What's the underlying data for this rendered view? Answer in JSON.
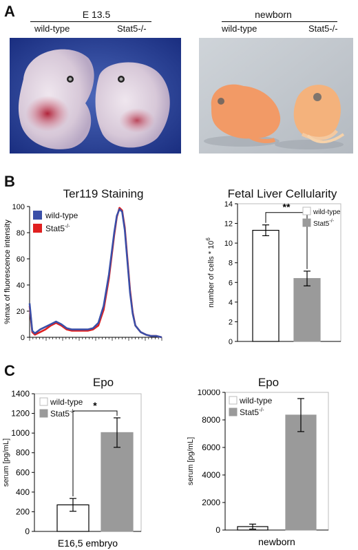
{
  "panels": {
    "a": {
      "letter": "A",
      "left_group": {
        "title": "E 13.5",
        "labels": [
          "wild-type",
          "Stat5-/-"
        ]
      },
      "right_group": {
        "title": "newborn",
        "labels": [
          "wild-type",
          "Stat5-/-"
        ]
      }
    },
    "b": {
      "letter": "B"
    },
    "c": {
      "letter": "C"
    }
  },
  "chart_data": [
    {
      "id": "ter119",
      "type": "line",
      "title": "Ter119 Staining",
      "xlabel": "",
      "ylabel": "%max of fluorescence intensity",
      "ylim": [
        0,
        100
      ],
      "yticks": [
        0,
        20,
        40,
        60,
        80,
        100
      ],
      "xlim": [
        0,
        1
      ],
      "legend": "top-left",
      "series": [
        {
          "name": "wild-type",
          "color": "#3a4fa8",
          "x": [
            0,
            0.02,
            0.04,
            0.08,
            0.12,
            0.16,
            0.2,
            0.24,
            0.28,
            0.32,
            0.36,
            0.4,
            0.44,
            0.48,
            0.52,
            0.56,
            0.6,
            0.64,
            0.66,
            0.68,
            0.7,
            0.72,
            0.74,
            0.76,
            0.78,
            0.8,
            0.84,
            0.88,
            0.92,
            0.96,
            1.0
          ],
          "y": [
            26,
            5,
            3,
            6,
            8,
            10,
            12,
            10,
            7,
            6,
            6,
            6,
            6,
            7,
            11,
            24,
            48,
            80,
            93,
            98,
            96,
            82,
            58,
            34,
            18,
            9,
            4,
            2,
            1,
            1,
            0
          ]
        },
        {
          "name": "Stat5-/-",
          "color": "#e02020",
          "x": [
            0,
            0.02,
            0.04,
            0.08,
            0.12,
            0.16,
            0.2,
            0.24,
            0.28,
            0.32,
            0.36,
            0.4,
            0.44,
            0.48,
            0.52,
            0.56,
            0.6,
            0.64,
            0.66,
            0.68,
            0.7,
            0.72,
            0.74,
            0.76,
            0.78,
            0.8,
            0.84,
            0.88,
            0.92,
            0.96,
            1.0
          ],
          "y": [
            24,
            4,
            2,
            4,
            6,
            9,
            11,
            9,
            6,
            5,
            5,
            5,
            5,
            6,
            9,
            21,
            45,
            78,
            92,
            99,
            97,
            84,
            60,
            36,
            19,
            9,
            4,
            2,
            1,
            1,
            0
          ]
        }
      ]
    },
    {
      "id": "cellularity",
      "type": "bar",
      "title": "Fetal Liver Cellularity",
      "ylabel": "number of cells * 10^6",
      "ylim": [
        0,
        14
      ],
      "yticks": [
        0,
        2,
        4,
        6,
        8,
        10,
        12,
        14
      ],
      "categories": [
        "wild-type",
        "Stat5-/-"
      ],
      "values": [
        11.3,
        6.4
      ],
      "errors": [
        0.55,
        0.75
      ],
      "colors": [
        "#ffffff",
        "#9a9a9a"
      ],
      "legend": "top-right",
      "significance": "**"
    },
    {
      "id": "epo_embryo",
      "type": "bar",
      "title": "Epo",
      "ylabel": "serum [pg/mL]",
      "xlabel": "E16,5 embryo",
      "ylim": [
        0,
        1400
      ],
      "yticks": [
        0,
        200,
        400,
        600,
        800,
        1000,
        1200,
        1400
      ],
      "categories": [
        "wild-type",
        "Stat5-/-"
      ],
      "values": [
        270,
        1005
      ],
      "errors": [
        65,
        150
      ],
      "colors": [
        "#ffffff",
        "#9a9a9a"
      ],
      "legend": "top-left",
      "significance": "*"
    },
    {
      "id": "epo_newborn",
      "type": "bar",
      "title": "Epo",
      "ylabel": "serum [pg/mL]",
      "xlabel": "newborn",
      "ylim": [
        0,
        10000
      ],
      "yticks": [
        0,
        2000,
        4000,
        6000,
        8000,
        10000
      ],
      "categories": [
        "wild-type",
        "Stat5-/-"
      ],
      "values": [
        250,
        8350
      ],
      "errors": [
        180,
        1200
      ],
      "colors": [
        "#ffffff",
        "#9a9a9a"
      ],
      "legend": "top-left",
      "significance": ""
    }
  ]
}
